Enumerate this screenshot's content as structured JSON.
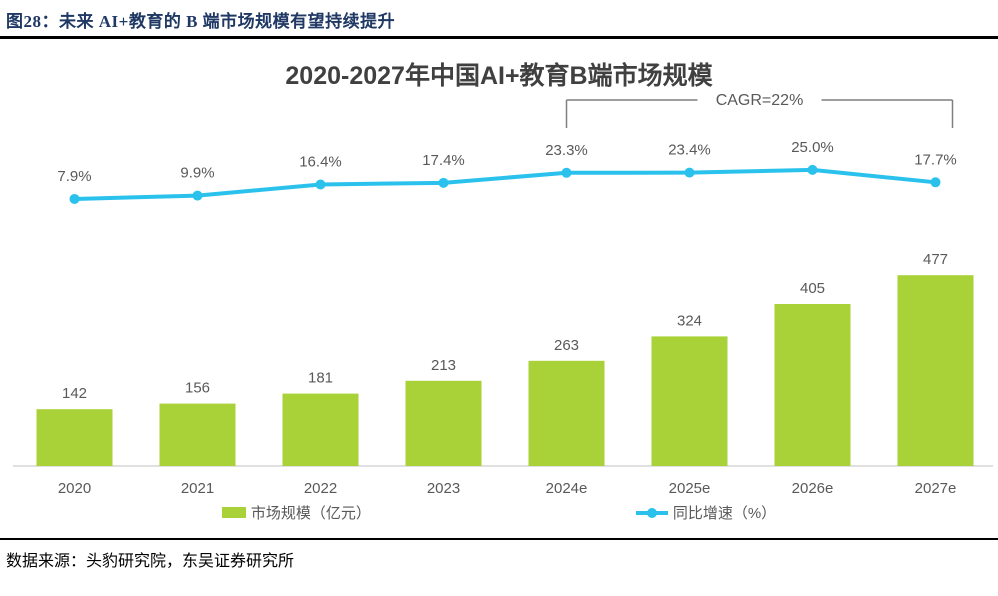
{
  "figure": {
    "header": "图28：未来 AI+教育的 B 端市场规模有望持续提升",
    "source": "数据来源：头豹研究院，东吴证券研究所"
  },
  "chart_data": {
    "type": "bar",
    "subtype": "bar+line-combo",
    "title": "2020-2027年中国AI+教育B端市场规模",
    "categories": [
      "2020",
      "2021",
      "2022",
      "2023",
      "2024e",
      "2025e",
      "2026e",
      "2027e"
    ],
    "series": [
      {
        "name": "市场规模（亿元）",
        "type": "bar",
        "values": [
          142,
          156,
          181,
          213,
          263,
          324,
          405,
          477
        ],
        "color": "#A9D138"
      },
      {
        "name": "同比增速（%）",
        "type": "line",
        "values": [
          7.9,
          9.9,
          16.4,
          17.4,
          23.3,
          23.4,
          25.0,
          17.7
        ],
        "color": "#2AC2ED"
      }
    ],
    "annotation": {
      "text": "CAGR=22%",
      "from_category": "2024e",
      "to_category": "2027e",
      "bracket_color": "#7F7F7F"
    },
    "legend": [
      {
        "label": "市场规模（亿元）",
        "marker": "square",
        "color": "#A9D138"
      },
      {
        "label": "同比增速（%）",
        "marker": "line-dot",
        "color": "#2AC2ED"
      }
    ],
    "layout_hints": {
      "y_axis_hidden": true,
      "data_labels": "all points and bars",
      "baseline_color": "#D6D6D6",
      "legend_position": "bottom"
    }
  }
}
